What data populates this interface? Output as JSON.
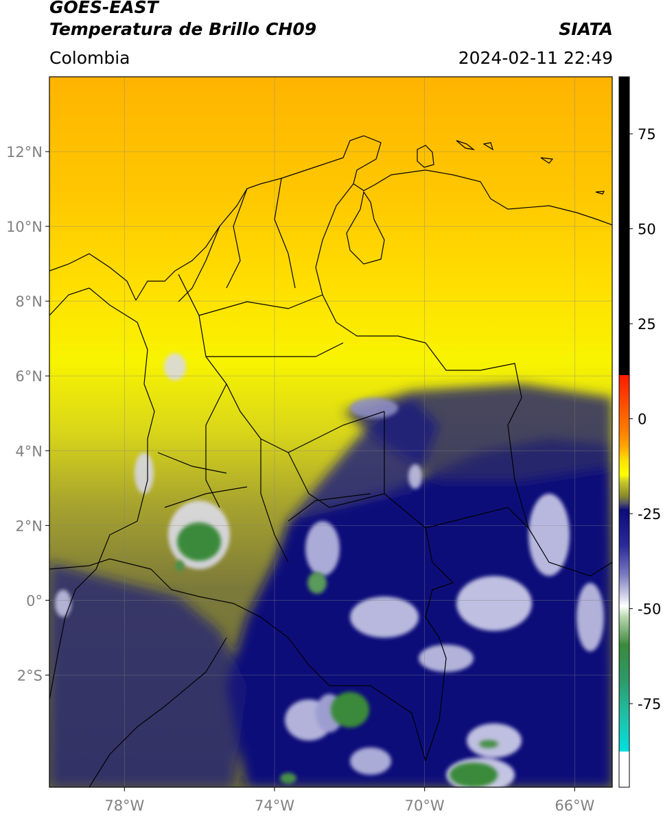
{
  "header": {
    "satellite": "GOES-EAST",
    "product": "Temperatura de Brillo CH09",
    "region": "Colombia",
    "agency": "SIATA",
    "datetime": "2024-02-11 22:49"
  },
  "map": {
    "lon_range": [
      -80,
      -65
    ],
    "lat_range": [
      -5,
      14
    ],
    "lon_ticks": [
      {
        "value": -78,
        "label": "78°W"
      },
      {
        "value": -74,
        "label": "74°W"
      },
      {
        "value": -70,
        "label": "70°W"
      },
      {
        "value": -66,
        "label": "66°W"
      }
    ],
    "lat_ticks": [
      {
        "value": 12,
        "label": "12°N"
      },
      {
        "value": 10,
        "label": "10°N"
      },
      {
        "value": 8,
        "label": "8°N"
      },
      {
        "value": 6,
        "label": "6°N"
      },
      {
        "value": 4,
        "label": "4°N"
      },
      {
        "value": 2,
        "label": "2°N"
      },
      {
        "value": 0,
        "label": "0°"
      },
      {
        "value": -2,
        "label": "2°S"
      }
    ],
    "gridlines": true
  },
  "colorbar": {
    "range": [
      -97,
      90
    ],
    "ticks": [
      {
        "value": 75,
        "label": "75"
      },
      {
        "value": 50,
        "label": "50"
      },
      {
        "value": 25,
        "label": "25"
      },
      {
        "value": 0,
        "label": "0"
      },
      {
        "value": -25,
        "label": "-25"
      },
      {
        "value": -50,
        "label": "-50"
      },
      {
        "value": -75,
        "label": "-75"
      }
    ],
    "colors": {
      "black": "#000000",
      "red": "#ff1a00",
      "orange": "#ffa500",
      "yellow": "#ffff00",
      "olive": "#8a8a2a",
      "navy": "#0b0b7a",
      "white": "#ffffff",
      "green": "#3b8a3b",
      "cyan": "#00e0e0"
    }
  }
}
